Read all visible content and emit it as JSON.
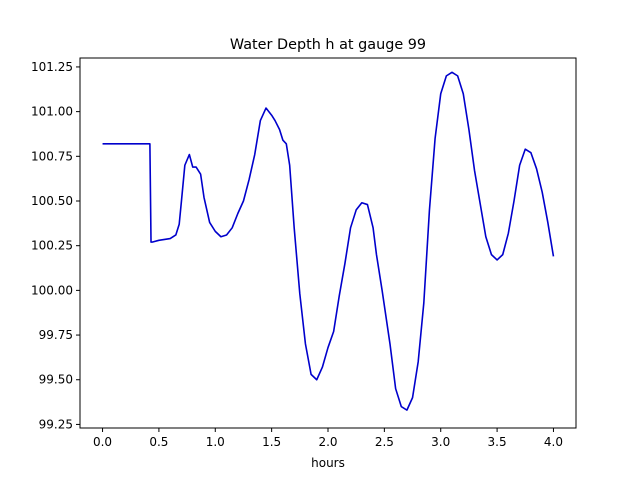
{
  "chart_data": {
    "type": "line",
    "title": "Water Depth h at gauge 99",
    "xlabel": "hours",
    "ylabel": "",
    "xlim": [
      -0.2,
      4.2
    ],
    "ylim": [
      99.23,
      101.3
    ],
    "xticks": [
      0.0,
      0.5,
      1.0,
      1.5,
      2.0,
      2.5,
      3.0,
      3.5,
      4.0
    ],
    "xtick_labels": [
      "0.0",
      "0.5",
      "1.0",
      "1.5",
      "2.0",
      "2.5",
      "3.0",
      "3.5",
      "4.0"
    ],
    "yticks": [
      99.25,
      99.5,
      99.75,
      100.0,
      100.25,
      100.5,
      100.75,
      101.0,
      101.25
    ],
    "ytick_labels": [
      "99.25",
      "99.50",
      "99.75",
      "100.00",
      "100.25",
      "100.50",
      "100.75",
      "101.00",
      "101.25"
    ],
    "grid": false,
    "line_color": "#0000cc",
    "series": [
      {
        "x": [
          0.0,
          0.1,
          0.2,
          0.3,
          0.42,
          0.43,
          0.44,
          0.5,
          0.6,
          0.65,
          0.68,
          0.7,
          0.73,
          0.77,
          0.8,
          0.83,
          0.87,
          0.9,
          0.95,
          1.0,
          1.05,
          1.1,
          1.15,
          1.2,
          1.25,
          1.3,
          1.35,
          1.4,
          1.45,
          1.5,
          1.53,
          1.57,
          1.6,
          1.63,
          1.66,
          1.7,
          1.75,
          1.8,
          1.85,
          1.9,
          1.95,
          2.0,
          2.05,
          2.1,
          2.15,
          2.2,
          2.25,
          2.3,
          2.35,
          2.4,
          2.43,
          2.48,
          2.55,
          2.6,
          2.65,
          2.7,
          2.75,
          2.8,
          2.85,
          2.9,
          2.95,
          3.0,
          3.05,
          3.1,
          3.15,
          3.2,
          3.25,
          3.3,
          3.4,
          3.45,
          3.5,
          3.55,
          3.6,
          3.65,
          3.7,
          3.75,
          3.8,
          3.85,
          3.9,
          3.95,
          4.0
        ],
        "y": [
          100.82,
          100.82,
          100.82,
          100.82,
          100.82,
          100.27,
          100.27,
          100.28,
          100.29,
          100.31,
          100.37,
          100.5,
          100.7,
          100.76,
          100.69,
          100.69,
          100.65,
          100.52,
          100.38,
          100.33,
          100.3,
          100.31,
          100.35,
          100.43,
          100.5,
          100.62,
          100.76,
          100.95,
          101.02,
          100.98,
          100.95,
          100.9,
          100.84,
          100.82,
          100.7,
          100.35,
          99.98,
          99.7,
          99.53,
          99.5,
          99.57,
          99.68,
          99.77,
          99.97,
          100.15,
          100.35,
          100.45,
          100.49,
          100.48,
          100.35,
          100.2,
          100.0,
          99.7,
          99.45,
          99.35,
          99.33,
          99.4,
          99.6,
          99.93,
          100.45,
          100.85,
          101.1,
          101.2,
          101.22,
          101.2,
          101.1,
          100.9,
          100.67,
          100.3,
          100.2,
          100.17,
          100.2,
          100.32,
          100.5,
          100.7,
          100.79,
          100.77,
          100.68,
          100.55,
          100.38,
          100.19
        ]
      }
    ]
  }
}
